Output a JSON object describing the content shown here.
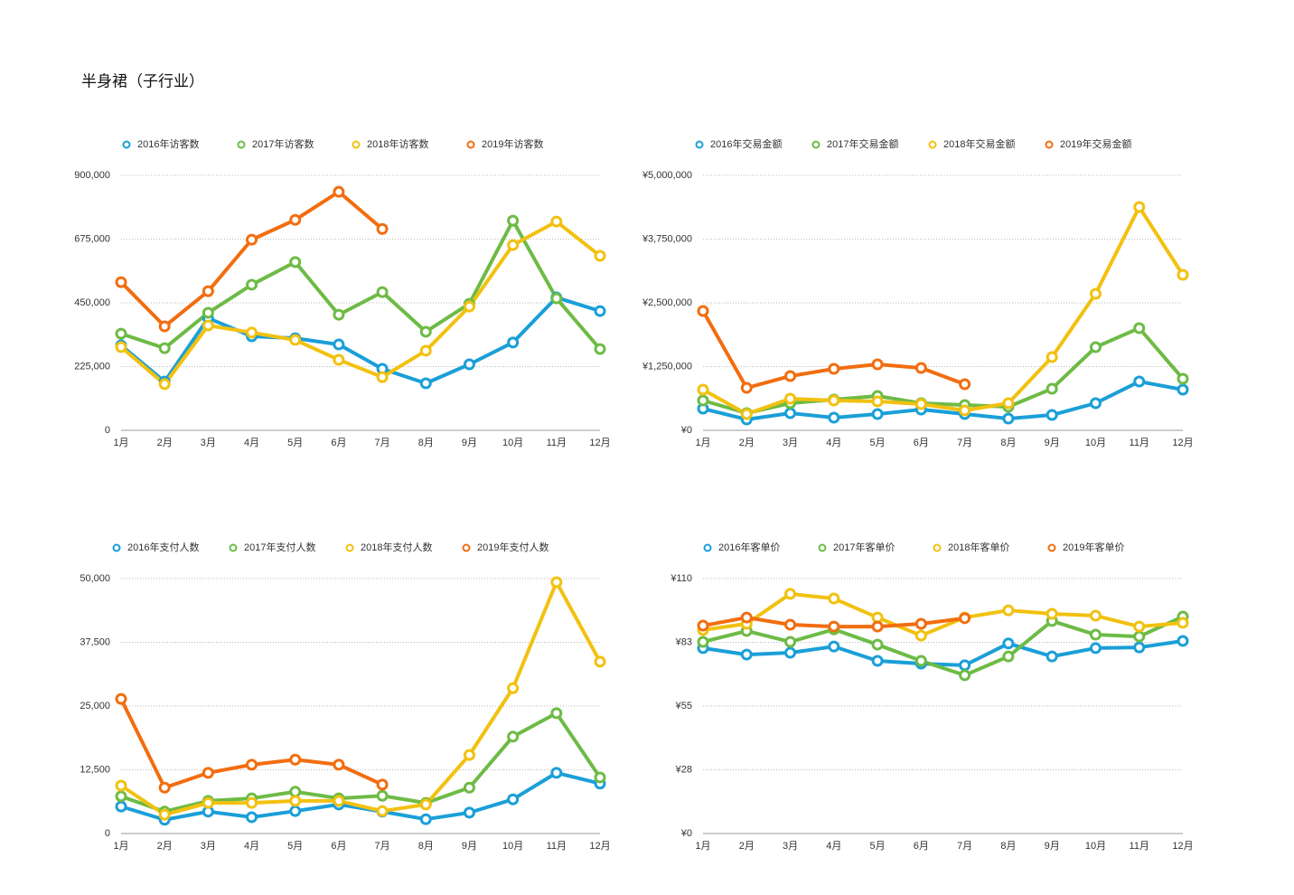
{
  "title": "半身裙（子行业）",
  "chart_data": [
    {
      "type": "line",
      "categories": [
        "1月",
        "2月",
        "3月",
        "4月",
        "5月",
        "6月",
        "7月",
        "8月",
        "9月",
        "10月",
        "11月",
        "12月"
      ],
      "series": [
        {
          "name": "2016年访客数",
          "color": "#1a9fd8",
          "values": [
            300000,
            172000,
            396000,
            332000,
            325000,
            303000,
            217000,
            166000,
            233000,
            310000,
            469000,
            421000
          ]
        },
        {
          "name": "2017年访客数",
          "color": "#6dbb45",
          "values": [
            341000,
            290000,
            415000,
            514000,
            594000,
            408000,
            488000,
            348000,
            447000,
            740000,
            466000,
            287000
          ]
        },
        {
          "name": "2018年访客数",
          "color": "#f2c10f",
          "values": [
            294000,
            163000,
            370000,
            345000,
            319000,
            249000,
            188000,
            281000,
            437000,
            654000,
            737000,
            616000
          ]
        },
        {
          "name": "2019年访客数",
          "color": "#f26d0f",
          "values": [
            523000,
            367000,
            491000,
            673000,
            743000,
            842000,
            711000,
            null,
            null,
            null,
            null,
            null
          ]
        }
      ],
      "ylim": [
        0,
        900000
      ],
      "yticks": [
        0,
        {
          "value": 225000,
          "label": "225,000"
        },
        {
          "value": 450000,
          "label": "450,000"
        },
        {
          "value": 675000,
          "label": "675,000"
        },
        {
          "value": 900000,
          "label": "900,000"
        }
      ],
      "grid": true
    },
    {
      "type": "line",
      "categories": [
        "1月",
        "2月",
        "3月",
        "4月",
        "5月",
        "6月",
        "7月",
        "8月",
        "9月",
        "10月",
        "11月",
        "12月"
      ],
      "series": [
        {
          "name": "2016年交易金额",
          "color": "#1a9fd8",
          "values": [
            425000,
            213000,
            337000,
            248000,
            319000,
            408000,
            319000,
            230000,
            301000,
            532000,
            957000,
            798000
          ]
        },
        {
          "name": "2017年交易金额",
          "color": "#6dbb45",
          "values": [
            585000,
            337000,
            532000,
            603000,
            674000,
            532000,
            496000,
            461000,
            816000,
            1631000,
            2004000,
            1011000
          ]
        },
        {
          "name": "2018年交易金额",
          "color": "#f2c10f",
          "values": [
            798000,
            319000,
            621000,
            585000,
            567000,
            514000,
            390000,
            532000,
            1436000,
            2677000,
            4379000,
            3050000
          ]
        },
        {
          "name": "2019年交易金额",
          "color": "#f26d0f",
          "values": [
            2340000,
            833000,
            1064000,
            1206000,
            1294000,
            1223000,
            904000,
            null,
            null,
            null,
            null,
            null
          ]
        }
      ],
      "ylim": [
        0,
        5000000
      ],
      "yticks": [
        {
          "value": 0,
          "label": "¥0"
        },
        {
          "value": 1250000,
          "label": "¥1,250,000"
        },
        {
          "value": 2500000,
          "label": "¥2,500,000"
        },
        {
          "value": 3750000,
          "label": "¥3,750,000"
        },
        {
          "value": 5000000,
          "label": "¥5,000,000"
        }
      ],
      "grid": true
    },
    {
      "type": "line",
      "categories": [
        "1月",
        "2月",
        "3月",
        "4月",
        "5月",
        "6月",
        "7月",
        "8月",
        "9月",
        "10月",
        "11月",
        "12月"
      ],
      "series": [
        {
          "name": "2016年支付人数",
          "color": "#1a9fd8",
          "values": [
            5300,
            2700,
            4300,
            3200,
            4400,
            5700,
            4300,
            2800,
            4100,
            6700,
            11900,
            9800
          ]
        },
        {
          "name": "2017年支付人数",
          "color": "#6dbb45",
          "values": [
            7300,
            4300,
            6400,
            6900,
            8200,
            6900,
            7400,
            6000,
            9000,
            19000,
            23600,
            11000
          ]
        },
        {
          "name": "2018年支付人数",
          "color": "#f2c10f",
          "values": [
            9400,
            3700,
            6000,
            6000,
            6400,
            6400,
            4400,
            5700,
            15400,
            28500,
            49300,
            33700
          ]
        },
        {
          "name": "2019年支付人数",
          "color": "#f26d0f",
          "values": [
            26400,
            9000,
            11900,
            13500,
            14500,
            13500,
            9600,
            null,
            null,
            null,
            null,
            null
          ]
        }
      ],
      "ylim": [
        0,
        50000
      ],
      "yticks": [
        0,
        {
          "value": 12500,
          "label": "12,500"
        },
        {
          "value": 25000,
          "label": "25,000"
        },
        {
          "value": 37500,
          "label": "37,500"
        },
        {
          "value": 50000,
          "label": "50,000"
        }
      ],
      "grid": true
    },
    {
      "type": "line",
      "categories": [
        "1月",
        "2月",
        "3月",
        "4月",
        "5月",
        "6月",
        "7月",
        "8月",
        "9月",
        "10月",
        "11月",
        "12月"
      ],
      "series": [
        {
          "name": "2016年客单价",
          "color": "#1a9fd8",
          "values": [
            80.0,
            77.2,
            78.0,
            80.7,
            74.5,
            73.3,
            72.6,
            82.0,
            76.4,
            80.0,
            80.3,
            83.1
          ]
        },
        {
          "name": "2017年客单价",
          "color": "#6dbb45",
          "values": [
            82.7,
            87.4,
            82.7,
            88.1,
            81.5,
            74.5,
            68.3,
            76.4,
            91.7,
            85.8,
            85.0,
            93.6
          ]
        },
        {
          "name": "2018年客单价",
          "color": "#f2c10f",
          "values": [
            87.8,
            90.5,
            103.4,
            101.4,
            93.2,
            85.4,
            93.2,
            96.3,
            94.8,
            94.0,
            89.3,
            90.9
          ]
        },
        {
          "name": "2019年客单价",
          "color": "#f26d0f",
          "values": [
            89.7,
            93.2,
            90.1,
            89.3,
            89.3,
            90.5,
            92.9,
            null,
            null,
            null,
            null,
            null
          ]
        }
      ],
      "ylim": [
        0,
        110
      ],
      "yticks": [
        {
          "value": 0,
          "label": "¥0"
        },
        {
          "value": 27.5,
          "label": "¥28"
        },
        {
          "value": 55,
          "label": "¥55"
        },
        {
          "value": 82.5,
          "label": "¥83"
        },
        {
          "value": 110,
          "label": "¥110"
        }
      ],
      "grid": true
    }
  ]
}
